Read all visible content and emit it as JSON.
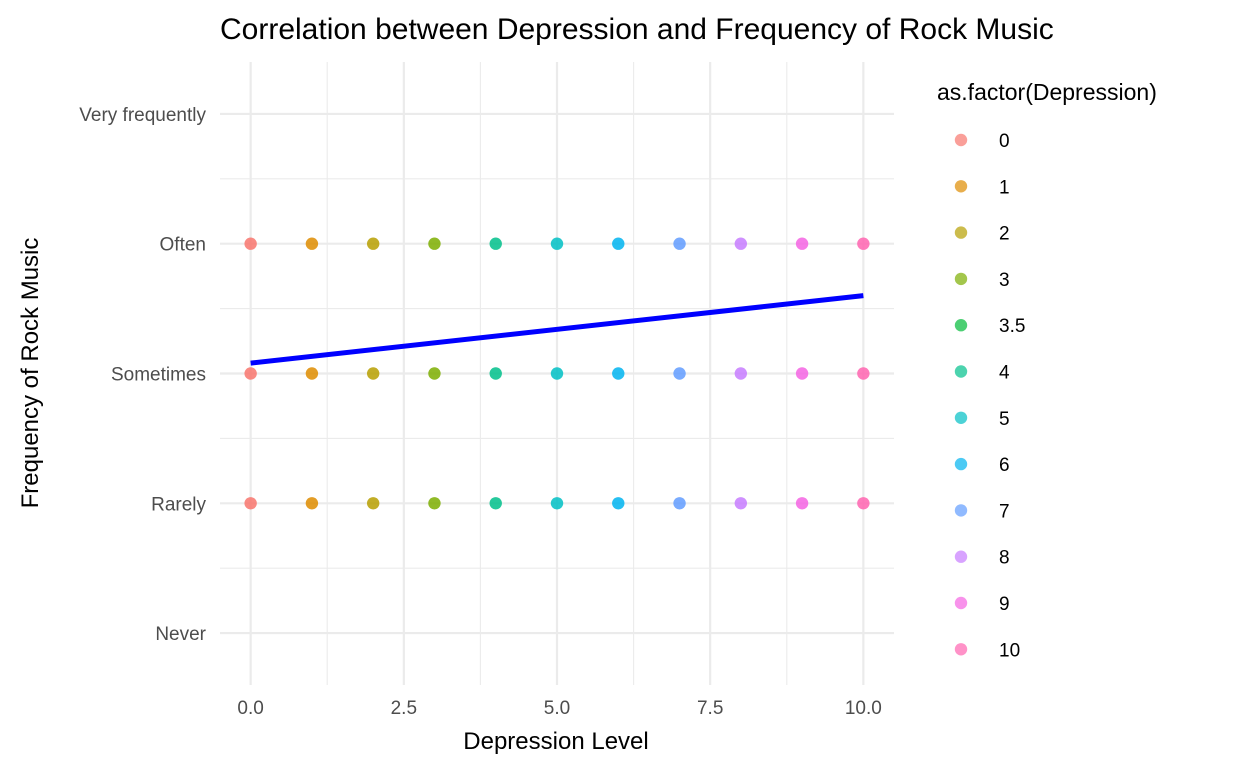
{
  "chart_data": {
    "type": "scatter",
    "title": "Correlation between Depression and Frequency of Rock Music",
    "xlabel": "Depression Level",
    "ylabel": "Frequency of Rock Music",
    "xlim": [
      -0.5,
      10.5
    ],
    "x_ticks": [
      0.0,
      2.5,
      5.0,
      7.5,
      10.0
    ],
    "x_tick_labels": [
      "0.0",
      "2.5",
      "5.0",
      "7.5",
      "10.0"
    ],
    "y_categories": [
      "Never",
      "Rarely",
      "Sometimes",
      "Often",
      "Very frequently"
    ],
    "grid": true,
    "legend": {
      "title": "as.factor(Depression)",
      "position": "right",
      "entries": [
        {
          "label": "0",
          "color": "#F8766D"
        },
        {
          "label": "1",
          "color": "#DE8C00"
        },
        {
          "label": "2",
          "color": "#B79F00"
        },
        {
          "label": "3",
          "color": "#7CAE00"
        },
        {
          "label": "3.5",
          "color": "#00BA38"
        },
        {
          "label": "4",
          "color": "#00C08B"
        },
        {
          "label": "5",
          "color": "#00BFC4"
        },
        {
          "label": "6",
          "color": "#00B4F0"
        },
        {
          "label": "7",
          "color": "#619CFF"
        },
        {
          "label": "8",
          "color": "#C77CFF"
        },
        {
          "label": "9",
          "color": "#F564E3"
        },
        {
          "label": "10",
          "color": "#FF64B0"
        }
      ]
    },
    "points": [
      {
        "x": 0,
        "y": "Often",
        "group": "0"
      },
      {
        "x": 1,
        "y": "Often",
        "group": "1"
      },
      {
        "x": 2,
        "y": "Often",
        "group": "2"
      },
      {
        "x": 3,
        "y": "Often",
        "group": "3"
      },
      {
        "x": 4,
        "y": "Often",
        "group": "4"
      },
      {
        "x": 5,
        "y": "Often",
        "group": "5"
      },
      {
        "x": 6,
        "y": "Often",
        "group": "6"
      },
      {
        "x": 7,
        "y": "Often",
        "group": "7"
      },
      {
        "x": 8,
        "y": "Often",
        "group": "8"
      },
      {
        "x": 9,
        "y": "Often",
        "group": "9"
      },
      {
        "x": 10,
        "y": "Often",
        "group": "10"
      },
      {
        "x": 0,
        "y": "Sometimes",
        "group": "0"
      },
      {
        "x": 1,
        "y": "Sometimes",
        "group": "1"
      },
      {
        "x": 2,
        "y": "Sometimes",
        "group": "2"
      },
      {
        "x": 3,
        "y": "Sometimes",
        "group": "3"
      },
      {
        "x": 4,
        "y": "Sometimes",
        "group": "4"
      },
      {
        "x": 5,
        "y": "Sometimes",
        "group": "5"
      },
      {
        "x": 6,
        "y": "Sometimes",
        "group": "6"
      },
      {
        "x": 7,
        "y": "Sometimes",
        "group": "7"
      },
      {
        "x": 8,
        "y": "Sometimes",
        "group": "8"
      },
      {
        "x": 9,
        "y": "Sometimes",
        "group": "9"
      },
      {
        "x": 10,
        "y": "Sometimes",
        "group": "10"
      },
      {
        "x": 0,
        "y": "Rarely",
        "group": "0"
      },
      {
        "x": 1,
        "y": "Rarely",
        "group": "1"
      },
      {
        "x": 2,
        "y": "Rarely",
        "group": "2"
      },
      {
        "x": 3,
        "y": "Rarely",
        "group": "3"
      },
      {
        "x": 4,
        "y": "Rarely",
        "group": "4"
      },
      {
        "x": 5,
        "y": "Rarely",
        "group": "5"
      },
      {
        "x": 6,
        "y": "Rarely",
        "group": "6"
      },
      {
        "x": 7,
        "y": "Rarely",
        "group": "7"
      },
      {
        "x": 8,
        "y": "Rarely",
        "group": "8"
      },
      {
        "x": 9,
        "y": "Rarely",
        "group": "9"
      },
      {
        "x": 10,
        "y": "Rarely",
        "group": "10"
      }
    ],
    "trend_line": {
      "color": "#0000FF",
      "from": {
        "x": 0,
        "y_level": 3.08
      },
      "to": {
        "x": 10,
        "y_level": 3.6
      }
    }
  }
}
